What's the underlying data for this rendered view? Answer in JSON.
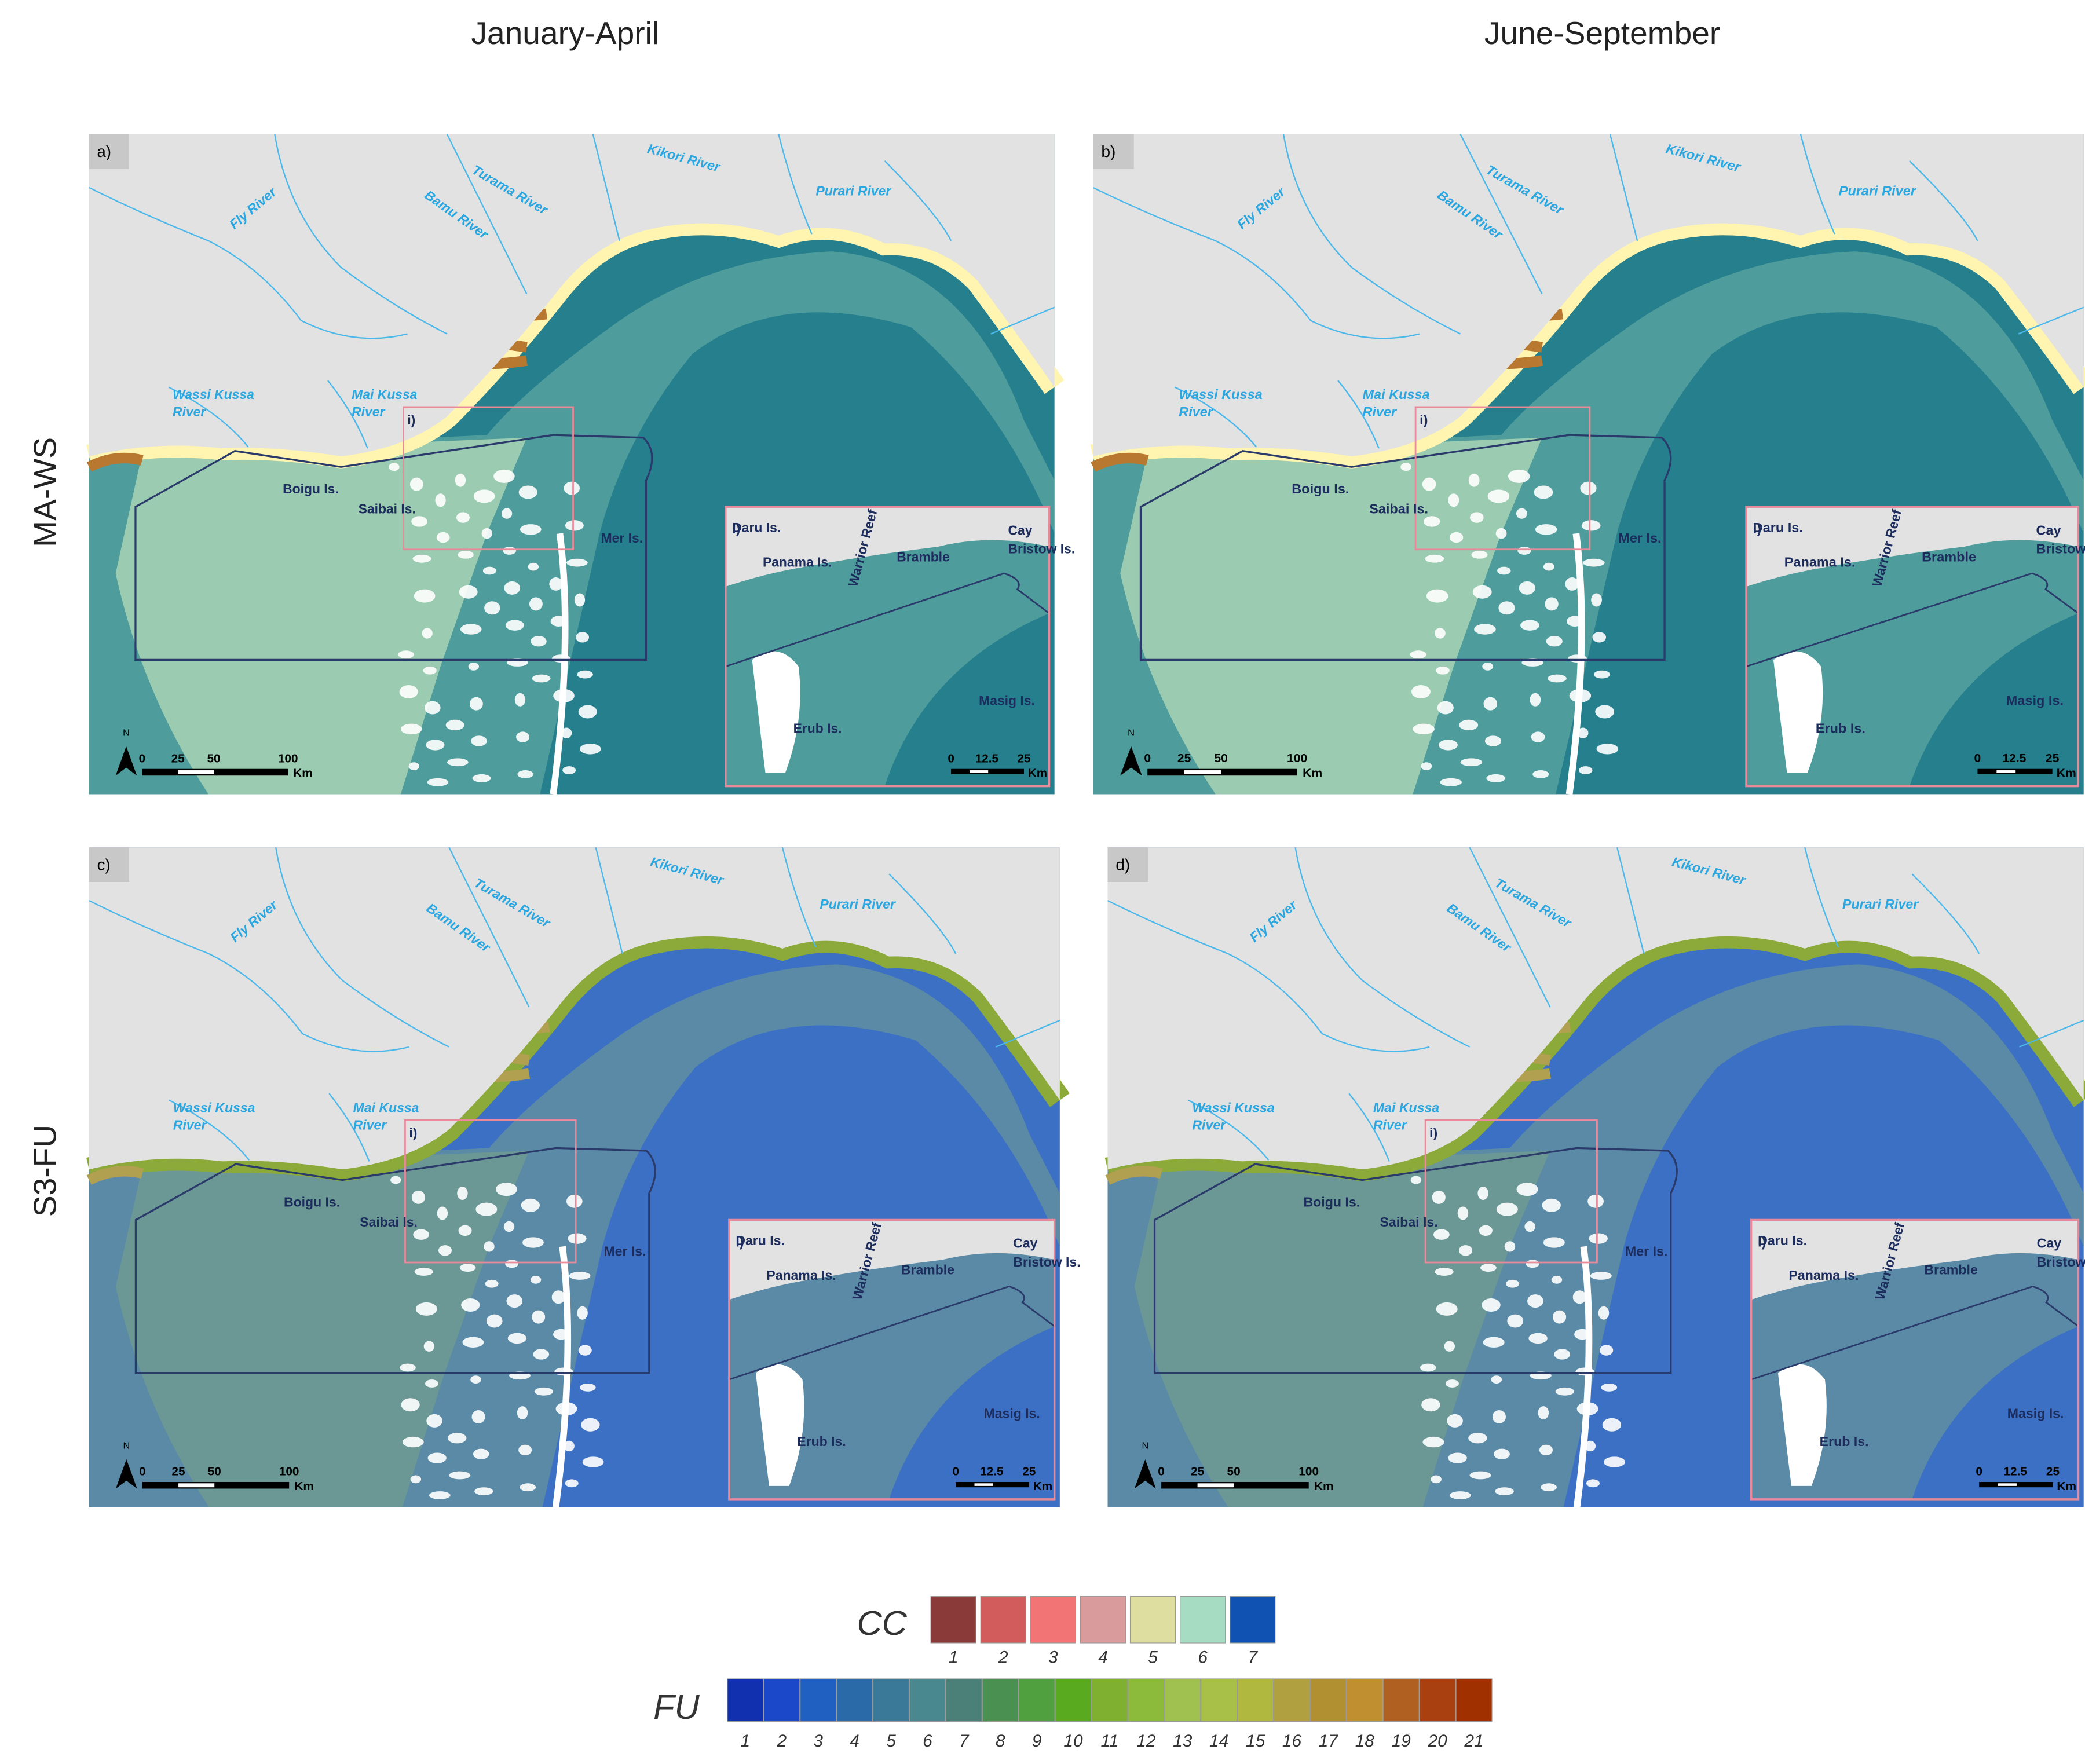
{
  "columns": [
    "January-April",
    "June-September"
  ],
  "rows": [
    "MA-WS",
    "S3-FU"
  ],
  "panels": [
    {
      "label": "a)"
    },
    {
      "label": "b)"
    },
    {
      "label": "c)"
    },
    {
      "label": "d)"
    }
  ],
  "map_labels": {
    "rivers": [
      "Turama River",
      "Kikori River",
      "Purari River",
      "Bamu River",
      "Fly River",
      "Wassi Kussa",
      "River",
      "Mai Kussa",
      "River"
    ],
    "islands": [
      "Boigu Is.",
      "Saibai Is.",
      "Mer Is."
    ],
    "inset_marker": "i)"
  },
  "scale_bar": {
    "north": "N",
    "ticks": [
      "0",
      "25",
      "50",
      "100"
    ],
    "unit": "Km"
  },
  "inset": {
    "label": "i)",
    "places": [
      "Daru Is.",
      "Panama Is.",
      "Bramble",
      "Cay",
      "Bristow Is.",
      "Warrior Reef",
      "Erub Is.",
      "Masig Is."
    ],
    "scale_ticks": [
      "0",
      "12.5",
      "25"
    ],
    "unit": "Km"
  },
  "legend": {
    "cc": {
      "title": "CC",
      "classes": [
        {
          "label": "1",
          "color": "#8b3a3a"
        },
        {
          "label": "2",
          "color": "#d25c5c"
        },
        {
          "label": "3",
          "color": "#f27474"
        },
        {
          "label": "4",
          "color": "#d99b9b"
        },
        {
          "label": "5",
          "color": "#dedea0"
        },
        {
          "label": "6",
          "color": "#a6dcc2"
        },
        {
          "label": "7",
          "color": "#1052b2"
        }
      ]
    },
    "fu": {
      "title": "FU",
      "classes": [
        {
          "label": "1",
          "color": "#1030b0"
        },
        {
          "label": "2",
          "color": "#1a48c8"
        },
        {
          "label": "3",
          "color": "#2060c0"
        },
        {
          "label": "4",
          "color": "#2a6aa8"
        },
        {
          "label": "5",
          "color": "#3a7a98"
        },
        {
          "label": "6",
          "color": "#4a8890"
        },
        {
          "label": "7",
          "color": "#4a8078"
        },
        {
          "label": "8",
          "color": "#4a9050"
        },
        {
          "label": "9",
          "color": "#50a040"
        },
        {
          "label": "10",
          "color": "#5aaa20"
        },
        {
          "label": "11",
          "color": "#80b030"
        },
        {
          "label": "12",
          "color": "#8cba3a"
        },
        {
          "label": "13",
          "color": "#a0c050"
        },
        {
          "label": "14",
          "color": "#a8c048"
        },
        {
          "label": "15",
          "color": "#b0b840"
        },
        {
          "label": "16",
          "color": "#b0a040"
        },
        {
          "label": "17",
          "color": "#b09030"
        },
        {
          "label": "18",
          "color": "#c09030"
        },
        {
          "label": "19",
          "color": "#b06020"
        },
        {
          "label": "20",
          "color": "#a84010"
        },
        {
          "label": "21",
          "color": "#a03000"
        }
      ]
    }
  }
}
